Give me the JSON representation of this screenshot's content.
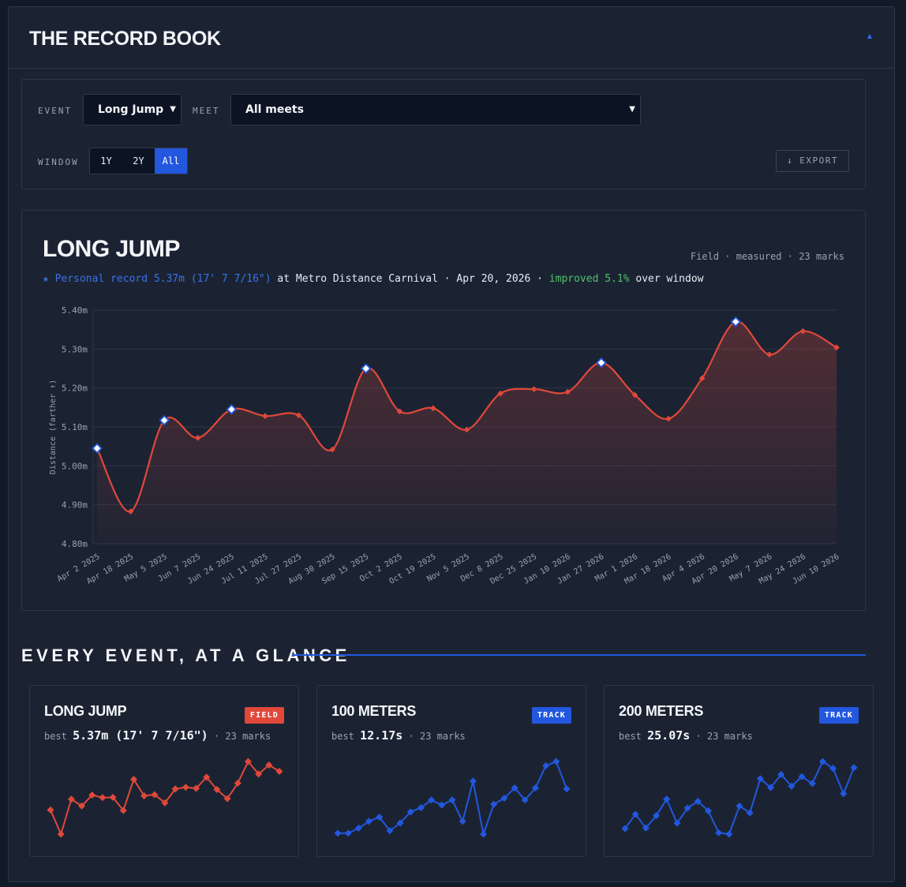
{
  "header": {
    "title": "THE RECORD BOOK",
    "collapse_icon": "caret-up-icon"
  },
  "controls": {
    "event_label": "EVENT",
    "event_value": "Long Jump",
    "meet_label": "MEET",
    "meet_value": "All meets",
    "window_label": "WINDOW",
    "window_options": [
      "1Y",
      "2Y",
      "All"
    ],
    "window_selected": "All",
    "export_label": "↓ EXPORT"
  },
  "main": {
    "title": "LONG JUMP",
    "meta": "Field · measured · 23 marks",
    "pr_prefix": "★ Personal record 5.37m (17' 7 7/16\")",
    "pr_mid": " at Metro Distance Carnival · Apr 20, 2026 · ",
    "pr_improved": "improved 5.1%",
    "pr_suffix": " over window"
  },
  "chart_data": {
    "type": "line",
    "title": "LONG JUMP",
    "ylabel": "Distance (farther ↑)",
    "ylim": [
      4.8,
      5.4
    ],
    "yticks": [
      "5.40m",
      "5.30m",
      "5.20m",
      "5.10m",
      "5.00m",
      "4.90m",
      "4.80m"
    ],
    "x": [
      "Apr 2 2025",
      "Apr 18 2025",
      "May 5 2025",
      "Jun 7 2025",
      "Jun 24 2025",
      "Jul 11 2025",
      "Jul 27 2025",
      "Aug 30 2025",
      "Sep 15 2025",
      "Oct 2 2025",
      "Oct 19 2025",
      "Nov 5 2025",
      "Dec 8 2025",
      "Dec 25 2025",
      "Jan 10 2026",
      "Jan 27 2026",
      "Mar 1 2026",
      "Mar 18 2026",
      "Apr 4 2026",
      "Apr 20 2026",
      "May 7 2026",
      "May 24 2026",
      "Jun 10 2026"
    ],
    "values": [
      5.045,
      4.883,
      5.117,
      5.072,
      5.145,
      5.128,
      5.13,
      5.042,
      5.25,
      5.14,
      5.148,
      5.093,
      5.186,
      5.197,
      5.19,
      5.265,
      5.182,
      5.121,
      5.225,
      5.37,
      5.286,
      5.346,
      5.304
    ],
    "pr_points": [
      0,
      2,
      4,
      8,
      15,
      19
    ],
    "color": "#e0483a",
    "grid": true
  },
  "glance": {
    "title": "EVERY EVENT, AT A GLANCE",
    "cards": [
      {
        "title": "LONG JUMP",
        "badge": "FIELD",
        "badge_color": "#e0483a",
        "best_prefix": "best ",
        "best_value": "5.37m (17' 7 7/16\")",
        "best_suffix": " · 23 marks",
        "color": "#e0483a",
        "values": [
          5.045,
          4.883,
          5.117,
          5.072,
          5.145,
          5.128,
          5.13,
          5.042,
          5.25,
          5.14,
          5.148,
          5.093,
          5.186,
          5.197,
          5.19,
          5.265,
          5.182,
          5.121,
          5.225,
          5.37,
          5.286,
          5.346,
          5.304
        ]
      },
      {
        "title": "100 METERS",
        "badge": "TRACK",
        "badge_color": "#2257de",
        "best_prefix": "best ",
        "best_value": "12.17s",
        "best_suffix": " · 23 marks",
        "color": "#2257de",
        "values": [
          0.03,
          0.03,
          0.09,
          0.17,
          0.22,
          0.06,
          0.15,
          0.28,
          0.33,
          0.42,
          0.36,
          0.42,
          0.17,
          0.64,
          0.02,
          0.37,
          0.44,
          0.56,
          0.42,
          0.56,
          0.82,
          0.87,
          0.55
        ]
      },
      {
        "title": "200 METERS",
        "badge": "TRACK",
        "badge_color": "#2257de",
        "best_prefix": "best ",
        "best_value": "25.07s",
        "best_suffix": " · 23 marks",
        "color": "#2257de",
        "values": [
          0.0,
          0.21,
          0.01,
          0.19,
          0.43,
          0.08,
          0.3,
          0.4,
          0.26,
          -0.06,
          -0.08,
          0.33,
          0.23,
          0.73,
          0.6,
          0.79,
          0.62,
          0.76,
          0.66,
          0.98,
          0.88,
          0.51,
          0.89
        ]
      }
    ]
  }
}
